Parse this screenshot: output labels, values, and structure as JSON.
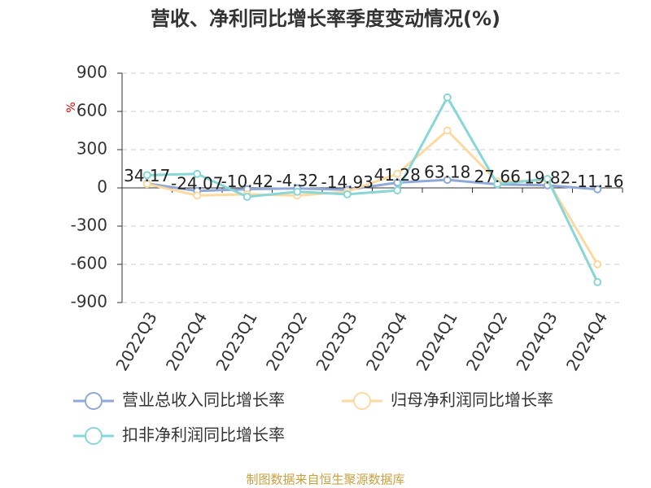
{
  "chart_data": {
    "type": "line",
    "title": "营收、净利同比增长率季度变动情况(%)",
    "y_label": "%",
    "source": "制图数据来自恒生聚源数据库",
    "categories": [
      "2022Q3",
      "2022Q4",
      "2023Q1",
      "2023Q2",
      "2023Q3",
      "2023Q4",
      "2024Q1",
      "2024Q2",
      "2024Q3",
      "2024Q4"
    ],
    "series": [
      {
        "name": "营业总收入同比增长率",
        "color": "#8fa8d8",
        "values": [
          34.17,
          -24.07,
          -10.42,
          -4.32,
          -14.93,
          41.28,
          63.18,
          27.66,
          19.82,
          -11.16
        ],
        "show_labels": true
      },
      {
        "name": "归母净利润同比增长率",
        "color": "#fcd9a0",
        "values": [
          30,
          -60,
          -50,
          -60,
          -30,
          110,
          450,
          50,
          60,
          -600
        ],
        "show_labels": false
      },
      {
        "name": "扣非净利润同比增长率",
        "color": "#88d6d6",
        "values": [
          100,
          110,
          -70,
          -30,
          -50,
          -20,
          710,
          30,
          70,
          -740
        ],
        "show_labels": false
      }
    ],
    "ylim": [
      -900,
      900
    ],
    "yticks": [
      900,
      600,
      300,
      0,
      -300,
      -600,
      -900
    ],
    "grid": true
  }
}
